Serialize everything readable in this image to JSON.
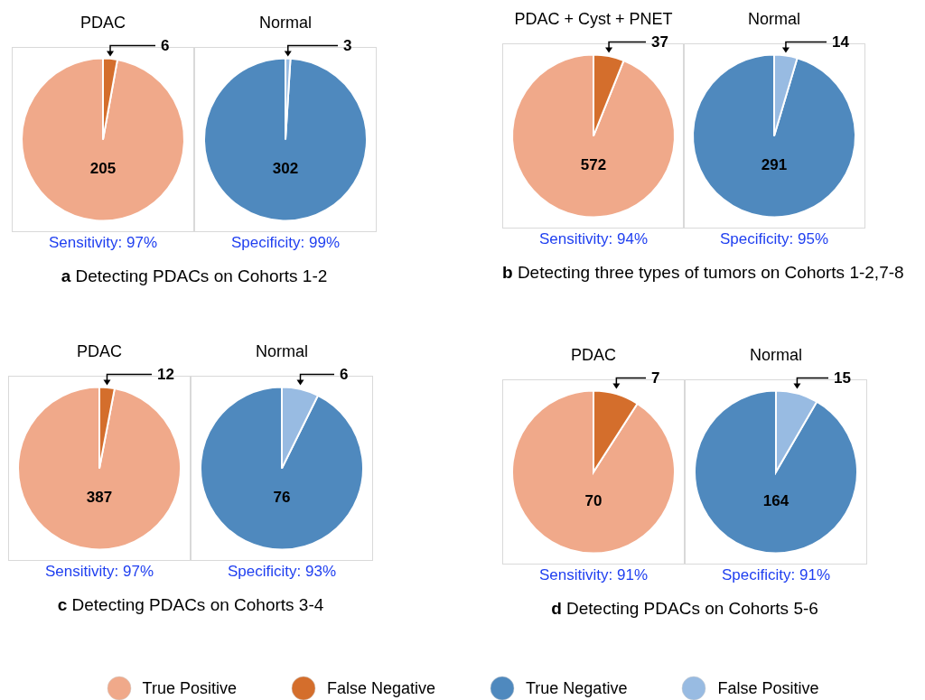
{
  "chart_data": [
    {
      "type": "pie",
      "title": "PDAC",
      "categories": [
        "True Positive",
        "False Negative"
      ],
      "values": [
        205,
        6
      ],
      "colors": [
        "#f0a98a",
        "#d46e2c"
      ],
      "data_labels": true,
      "legend": "bottom",
      "annotations": [
        "Sensitivity: 97%",
        "a Detecting PDACs on Cohorts 1-2"
      ]
    },
    {
      "type": "pie",
      "title": "Normal",
      "categories": [
        "True Negative",
        "False Positive"
      ],
      "values": [
        302,
        3
      ],
      "colors": [
        "#4f89be",
        "#98bbe2"
      ],
      "data_labels": true,
      "legend": "bottom",
      "annotations": [
        "Specificity: 99%"
      ]
    },
    {
      "type": "pie",
      "title": "PDAC + Cyst + PNET",
      "categories": [
        null,
        null
      ],
      "values": [
        572,
        37
      ],
      "colors": [
        "#f0a98a",
        "#d46e2c"
      ],
      "data_labels": true,
      "annotations": [
        "Sensitivity: 94%",
        "b Detecting three types of tumors on Cohorts 1-2,7-8"
      ]
    },
    {
      "type": "pie",
      "title": "Normal",
      "categories": [
        null,
        null
      ],
      "values": [
        291,
        14
      ],
      "colors": [
        "#4f89be",
        "#98bbe2"
      ],
      "data_labels": true,
      "annotations": [
        "Specificity: 95%"
      ]
    },
    {
      "type": "pie",
      "title": "PDAC",
      "categories": [
        null,
        null
      ],
      "values": [
        387,
        12
      ],
      "colors": [
        "#f0a98a",
        "#d46e2c"
      ],
      "data_labels": true,
      "annotations": [
        "Sensitivity: 97%",
        "c Detecting PDACs on Cohorts 3-4"
      ]
    },
    {
      "type": "pie",
      "title": "Normal",
      "categories": [
        null,
        null
      ],
      "values": [
        76,
        6
      ],
      "colors": [
        "#4f89be",
        "#98bbe2"
      ],
      "data_labels": true,
      "annotations": [
        "Specificity: 93%"
      ]
    },
    {
      "type": "pie",
      "title": "PDAC",
      "categories": [
        null,
        null
      ],
      "values": [
        70,
        7
      ],
      "colors": [
        "#f0a98a",
        "#d46e2c"
      ],
      "data_labels": true,
      "annotations": [
        "Sensitivity: 91%",
        "d Detecting PDACs on Cohorts 5-6"
      ]
    },
    {
      "type": "pie",
      "title": "Normal",
      "categories": [
        null,
        null
      ],
      "values": [
        164,
        15
      ],
      "colors": [
        "#4f89be",
        "#98bbe2"
      ],
      "data_labels": true,
      "annotations": [
        "Specificity: 91%"
      ]
    }
  ]
}
